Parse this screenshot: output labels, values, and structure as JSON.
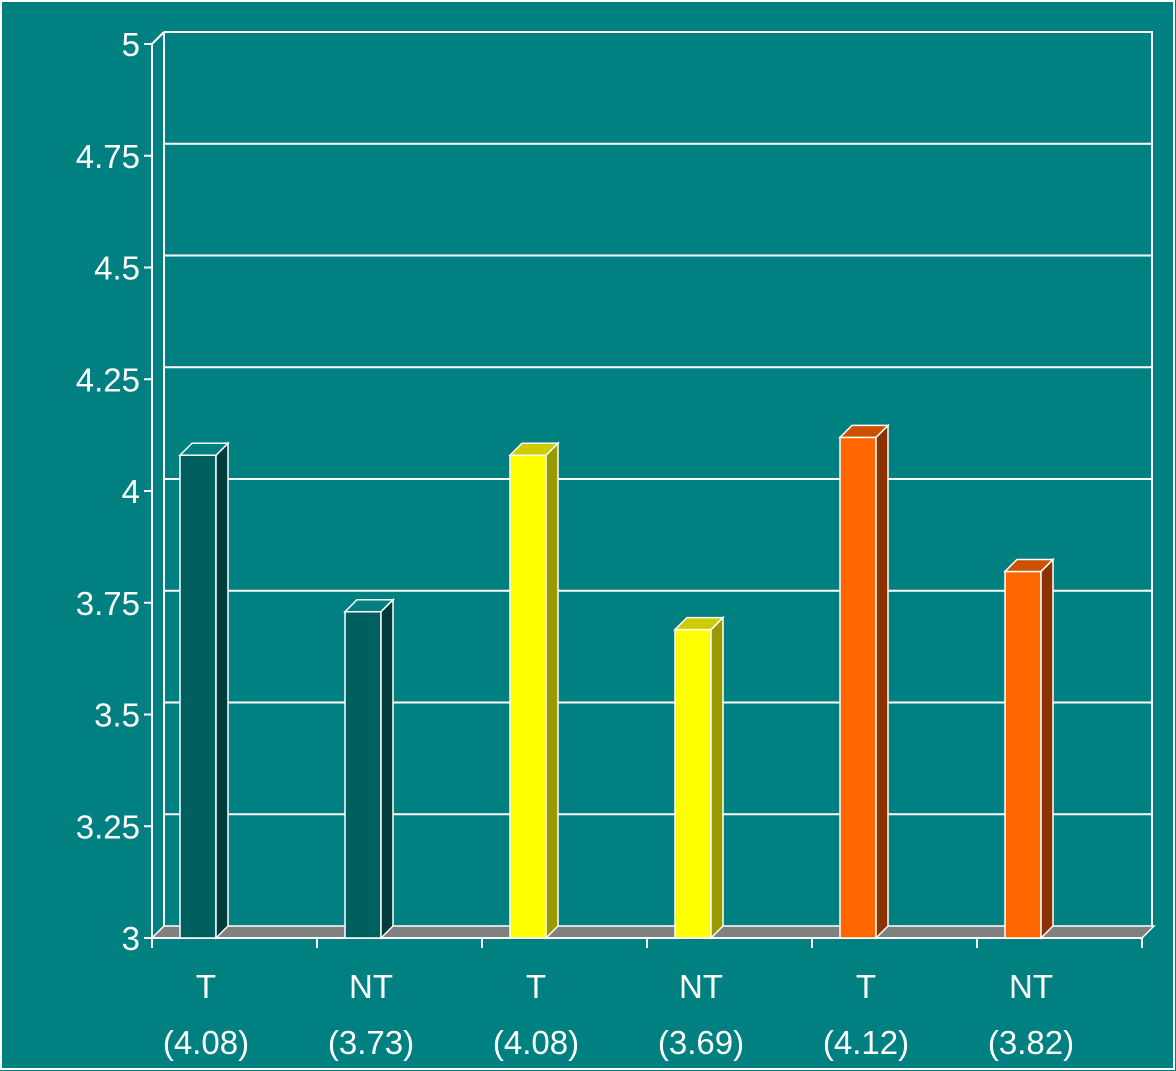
{
  "chart_data": {
    "type": "bar",
    "title": "",
    "xlabel": "",
    "ylabel": "",
    "ylim": [
      3,
      5
    ],
    "y_ticks": [
      "5",
      "4.75",
      "4.5",
      "4.25",
      "4",
      "3.75",
      "3.5",
      "3.25",
      "3"
    ],
    "grid": true,
    "legend": "none",
    "style": "3d",
    "categories": [
      {
        "label": "T",
        "sublabel": "(4.08)"
      },
      {
        "label": "NT",
        "sublabel": "(3.73)"
      },
      {
        "label": "T",
        "sublabel": "(4.08)"
      },
      {
        "label": "NT",
        "sublabel": "(3.69)"
      },
      {
        "label": "T",
        "sublabel": "(4.12)"
      },
      {
        "label": "NT",
        "sublabel": "(3.82)"
      }
    ],
    "values": [
      4.08,
      3.73,
      4.08,
      3.69,
      4.12,
      3.82
    ],
    "bar_colors": [
      {
        "front": "#006060",
        "side": "#003c3c",
        "top": "#008080"
      },
      {
        "front": "#006060",
        "side": "#003c3c",
        "top": "#008080"
      },
      {
        "front": "#ffff00",
        "side": "#999900",
        "top": "#cccc00"
      },
      {
        "front": "#ffff00",
        "side": "#999900",
        "top": "#cccc00"
      },
      {
        "front": "#ff6600",
        "side": "#8a3300",
        "top": "#cc5200"
      },
      {
        "front": "#ff6600",
        "side": "#8a3300",
        "top": "#cc5200"
      }
    ],
    "colors": {
      "background": "#008080",
      "grid": "#ffffff",
      "floor": "#808080",
      "text": "#ffffff"
    }
  }
}
